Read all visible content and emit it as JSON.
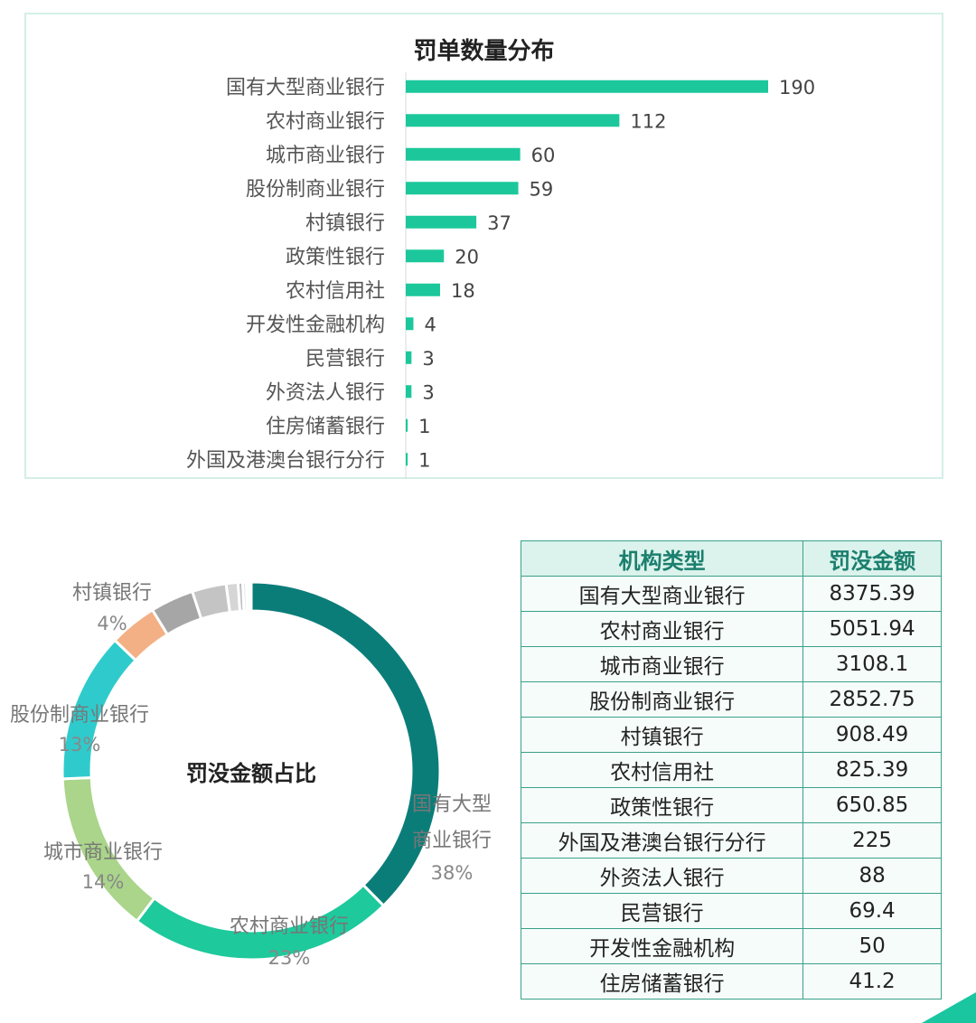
{
  "chart_data": [
    {
      "type": "bar",
      "orientation": "horizontal",
      "title": "罚单数量分布",
      "categories": [
        "国有大型商业银行",
        "农村商业银行",
        "城市商业银行",
        "股份制商业银行",
        "村镇银行",
        "政策性银行",
        "农村信用社",
        "开发性金融机构",
        "民营银行",
        "外资法人银行",
        "住房储蓄银行",
        "外国及港澳台银行分行"
      ],
      "values": [
        190,
        112,
        60,
        59,
        37,
        20,
        18,
        4,
        3,
        3,
        1,
        1
      ],
      "xlim": [
        0,
        190
      ],
      "color": "#1cc89b",
      "grid": false
    },
    {
      "type": "pie",
      "donut": true,
      "title": "罚没金额占比",
      "slices": [
        {
          "label": "国有大型商业银行",
          "label_lines": [
            "国有大型",
            "商业银行"
          ],
          "value": 8375.39,
          "pct": "38%",
          "color": "#0b7d79"
        },
        {
          "label": "农村商业银行",
          "label_lines": [
            "农村商业银行"
          ],
          "value": 5051.94,
          "pct": "23%",
          "color": "#1ec99c"
        },
        {
          "label": "城市商业银行",
          "label_lines": [
            "城市商业银行"
          ],
          "value": 3108.1,
          "pct": "14%",
          "color": "#aad58a"
        },
        {
          "label": "股份制商业银行",
          "label_lines": [
            "股份制商业银行"
          ],
          "value": 2852.75,
          "pct": "13%",
          "color": "#2fcbcc"
        },
        {
          "label": "村镇银行",
          "label_lines": [
            "村镇银行"
          ],
          "value": 908.49,
          "pct": "4%",
          "color": "#f3b084"
        },
        {
          "label": "农村信用社",
          "value": 825.39,
          "color": "#a6a6a6"
        },
        {
          "label": "政策性银行",
          "value": 650.85,
          "color": "#c4c4c4"
        },
        {
          "label": "外国及港澳台银行分行",
          "value": 225,
          "color": "#d6d6d6"
        },
        {
          "label": "外资法人银行",
          "value": 88,
          "color": "#bdbdbd"
        },
        {
          "label": "民营银行",
          "value": 69.4,
          "color": "#e2e2e2"
        },
        {
          "label": "开发性金融机构",
          "value": 50,
          "color": "#cfcfcf"
        },
        {
          "label": "住房储蓄银行",
          "value": 41.2,
          "color": "#ececec"
        }
      ]
    },
    {
      "type": "table",
      "columns": [
        "机构类型",
        "罚没金额"
      ],
      "rows": [
        [
          "国有大型商业银行",
          "8375.39"
        ],
        [
          "农村商业银行",
          "5051.94"
        ],
        [
          "城市商业银行",
          "3108.1"
        ],
        [
          "股份制商业银行",
          "2852.75"
        ],
        [
          "村镇银行",
          "908.49"
        ],
        [
          "农村信用社",
          "825.39"
        ],
        [
          "政策性银行",
          "650.85"
        ],
        [
          "外国及港澳台银行分行",
          "225"
        ],
        [
          "外资法人银行",
          "88"
        ],
        [
          "民营银行",
          "69.4"
        ],
        [
          "开发性金融机构",
          "50"
        ],
        [
          "住房储蓄银行",
          "41.2"
        ]
      ]
    }
  ]
}
